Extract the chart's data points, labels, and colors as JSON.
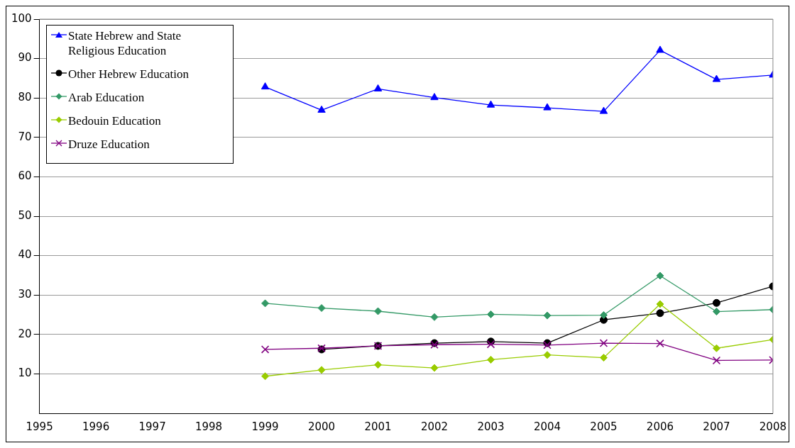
{
  "chart_data": {
    "type": "line",
    "x": [
      1999,
      2000,
      2001,
      2002,
      2003,
      2004,
      2005,
      2006,
      2007,
      2008
    ],
    "xlim": [
      1995,
      2008
    ],
    "xticks": [
      1995,
      1996,
      1997,
      1998,
      1999,
      2000,
      2001,
      2002,
      2003,
      2004,
      2005,
      2006,
      2007,
      2008
    ],
    "ylim": [
      0,
      100
    ],
    "yticks": [
      10,
      20,
      30,
      40,
      50,
      60,
      70,
      80,
      90,
      100
    ],
    "grid": "y",
    "legend": "top left",
    "series": [
      {
        "name": "State Hebrew and State Religious Education",
        "color": "#0000ff",
        "marker": "triangle",
        "values": [
          82.8,
          76.9,
          82.3,
          80.1,
          78.2,
          77.5,
          76.6,
          92.1,
          84.7,
          85.8
        ]
      },
      {
        "name": "Other Hebrew Education",
        "color": "#000000",
        "marker": "circle",
        "values": [
          null,
          16.2,
          17.1,
          17.8,
          18.2,
          17.8,
          23.7,
          25.4,
          28.0,
          32.2
        ]
      },
      {
        "name": "Arab Education",
        "color": "#339966",
        "marker": "diamond",
        "values": [
          27.9,
          26.7,
          25.9,
          24.4,
          25.1,
          24.8,
          24.9,
          34.9,
          25.8,
          26.3
        ]
      },
      {
        "name": "Bedouin Education",
        "color": "#99cc00",
        "marker": "diamond",
        "values": [
          9.4,
          11.0,
          12.3,
          11.5,
          13.6,
          14.8,
          14.1,
          27.7,
          16.5,
          18.7
        ]
      },
      {
        "name": "Druze Education",
        "color": "#800080",
        "marker": "cross",
        "values": [
          16.2,
          16.5,
          17.1,
          17.4,
          17.5,
          17.3,
          17.8,
          17.7,
          13.4,
          13.5
        ]
      }
    ]
  }
}
